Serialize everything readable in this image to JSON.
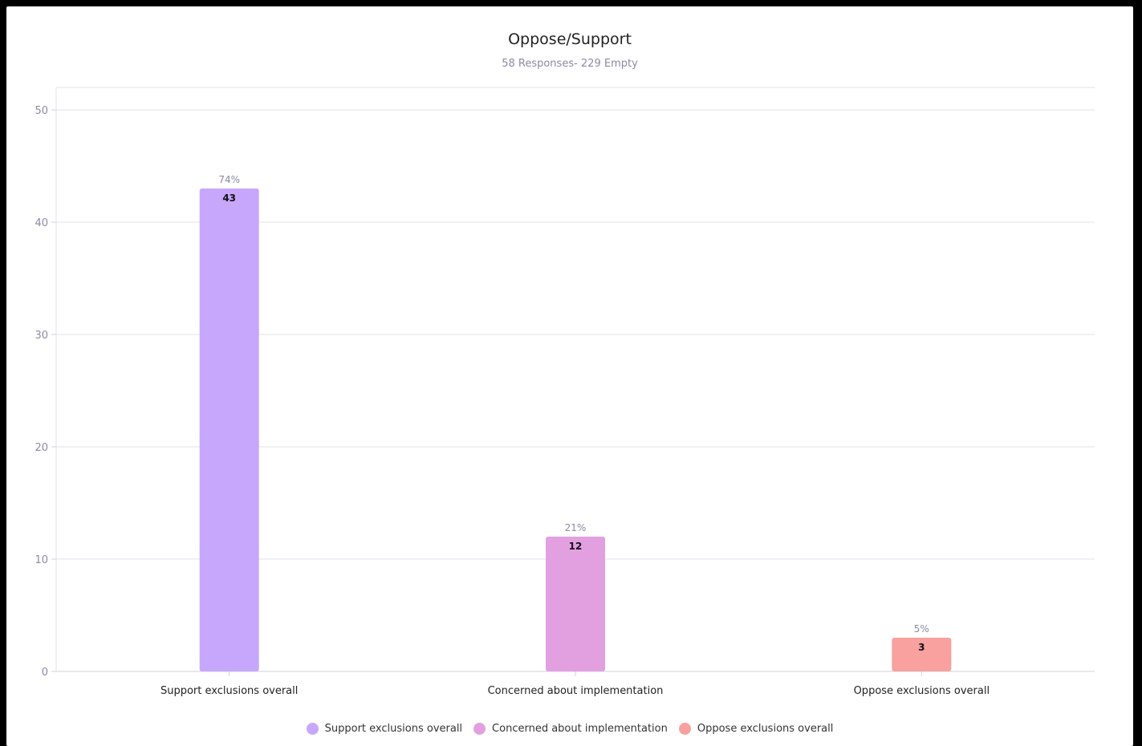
{
  "chart_data": {
    "type": "bar",
    "title": "Oppose/Support",
    "subtitle": "58 Responses- 229 Empty",
    "categories": [
      "Support exclusions overall",
      "Concerned about implementation",
      "Oppose exclusions overall"
    ],
    "values": [
      43,
      12,
      3
    ],
    "percent_labels": [
      "74%",
      "21%",
      "5%"
    ],
    "colors": [
      "#c7a7fb",
      "#e2a0e0",
      "#f8a19f"
    ],
    "ylim": [
      0,
      50
    ],
    "yticks": [
      0,
      10,
      20,
      30,
      40,
      50
    ],
    "grid": true,
    "legend": {
      "placement": "bottom",
      "entries": [
        "Support exclusions overall",
        "Concerned about implementation",
        "Oppose exclusions overall"
      ]
    }
  }
}
